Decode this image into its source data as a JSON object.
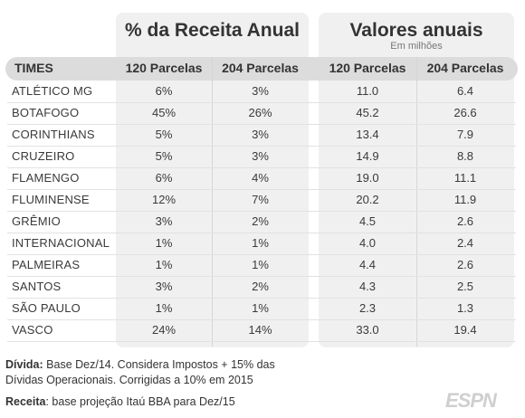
{
  "groups": {
    "percent_title": "% da Receita Anual",
    "values_title": "Valores anuais",
    "values_subtitle": "Em milhões"
  },
  "headers": {
    "times": "TIMES",
    "pct_120": "120 Parcelas",
    "pct_204": "204 Parcelas",
    "val_120": "120 Parcelas",
    "val_204": "204 Parcelas"
  },
  "rows": [
    {
      "team": "ATLÉTICO MG",
      "pct_120": "6%",
      "pct_204": "3%",
      "val_120": "11.0",
      "val_204": "6.4"
    },
    {
      "team": "BOTAFOGO",
      "pct_120": "45%",
      "pct_204": "26%",
      "val_120": "45.2",
      "val_204": "26.6"
    },
    {
      "team": "CORINTHIANS",
      "pct_120": "5%",
      "pct_204": "3%",
      "val_120": "13.4",
      "val_204": "7.9"
    },
    {
      "team": "CRUZEIRO",
      "pct_120": "5%",
      "pct_204": "3%",
      "val_120": "14.9",
      "val_204": "8.8"
    },
    {
      "team": "FLAMENGO",
      "pct_120": "6%",
      "pct_204": "4%",
      "val_120": "19.0",
      "val_204": "11.1"
    },
    {
      "team": "FLUMINENSE",
      "pct_120": "12%",
      "pct_204": "7%",
      "val_120": "20.2",
      "val_204": "11.9"
    },
    {
      "team": "GRÊMIO",
      "pct_120": "3%",
      "pct_204": "2%",
      "val_120": "4.5",
      "val_204": "2.6"
    },
    {
      "team": "INTERNACIONAL",
      "pct_120": "1%",
      "pct_204": "1%",
      "val_120": "4.0",
      "val_204": "2.4"
    },
    {
      "team": "PALMEIRAS",
      "pct_120": "1%",
      "pct_204": "1%",
      "val_120": "4.4",
      "val_204": "2.6"
    },
    {
      "team": "SANTOS",
      "pct_120": "3%",
      "pct_204": "2%",
      "val_120": "4.3",
      "val_204": "2.5"
    },
    {
      "team": "SÃO PAULO",
      "pct_120": "1%",
      "pct_204": "1%",
      "val_120": "2.3",
      "val_204": "1.3"
    },
    {
      "team": "VASCO",
      "pct_120": "24%",
      "pct_204": "14%",
      "val_120": "33.0",
      "val_204": "19.4"
    }
  ],
  "notes": {
    "divida_label": "Dívida:",
    "divida_text": " Base Dez/14. Considera Impostos + 15% das Dívidas Operacionais. Corrigidas a 10% em 2015",
    "receita_label": "Receita",
    "receita_text": ": base projeção Itaú BBA para Dez/15"
  },
  "logo": "ESPN"
}
